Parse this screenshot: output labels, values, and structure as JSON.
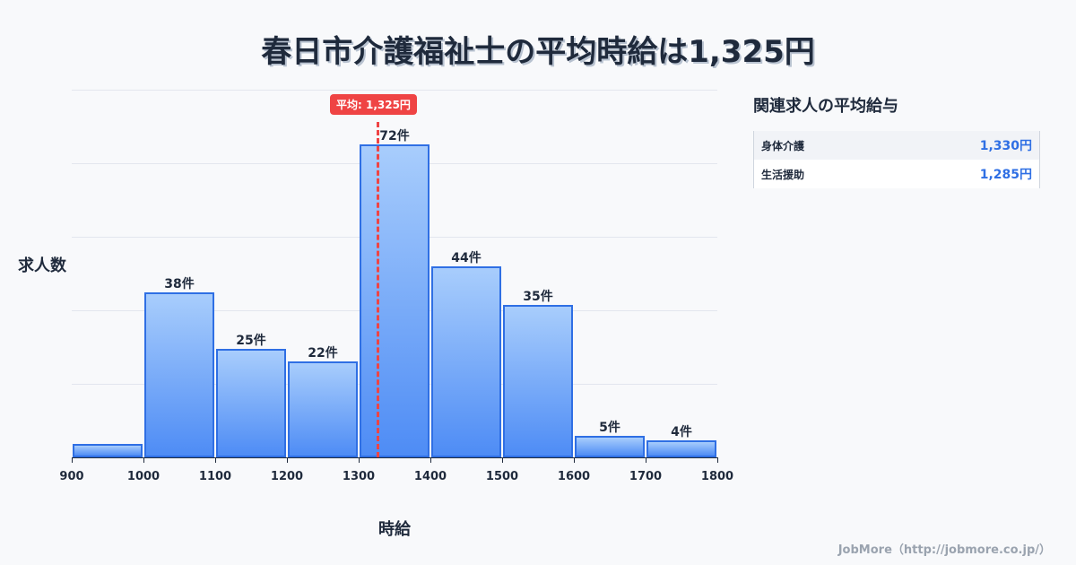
{
  "title": "春日市介護福祉士の平均時給は1,325円",
  "chart_data": {
    "type": "bar",
    "title": "春日市介護福祉士の平均時給は1,325円",
    "xlabel": "時給",
    "ylabel": "求人数",
    "categories": [
      "900-1000",
      "1000-1100",
      "1100-1200",
      "1200-1300",
      "1300-1400",
      "1400-1500",
      "1500-1600",
      "1600-1700",
      "1700-1800"
    ],
    "bin_edges": [
      900,
      1000,
      1100,
      1200,
      1300,
      1400,
      1500,
      1600,
      1700,
      1800
    ],
    "values": [
      3,
      38,
      25,
      22,
      72,
      44,
      35,
      5,
      4
    ],
    "bar_labels": [
      "",
      "38件",
      "25件",
      "22件",
      "72件",
      "44件",
      "35件",
      "5件",
      "4件"
    ],
    "x_ticks": [
      "900",
      "1000",
      "1100",
      "1200",
      "1300",
      "1400",
      "1500",
      "1600",
      "1700",
      "1800"
    ],
    "mean": 1325,
    "mean_label": "平均: 1,325円",
    "ylim": [
      0,
      85
    ],
    "grid": true,
    "colors": {
      "bar_fill_top": "#a8cdfc",
      "bar_fill_bottom": "#4e8cf5",
      "bar_edge": "#2f6fe4",
      "mean_line": "#ef4444"
    }
  },
  "side_panel": {
    "title": "関連求人の平均給与",
    "rows": [
      {
        "name": "身体介護",
        "value": "1,330円"
      },
      {
        "name": "生活援助",
        "value": "1,285円"
      }
    ]
  },
  "footer": "JobMore（http://jobmore.co.jp/）"
}
